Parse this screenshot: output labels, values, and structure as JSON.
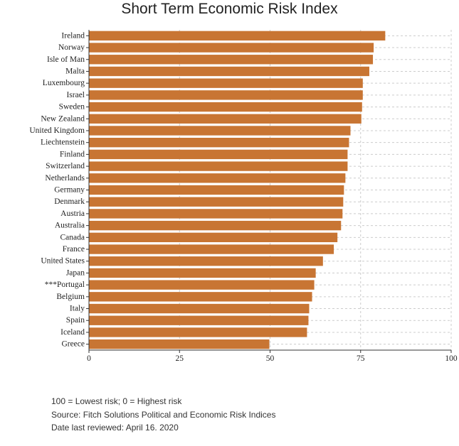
{
  "chart_data": {
    "type": "bar",
    "orientation": "horizontal",
    "title": "Short Term Economic Risk Index",
    "categories": [
      "Ireland",
      "Norway",
      "Isle of Man",
      "Malta",
      "Luxembourg",
      "Israel",
      "Sweden",
      "New Zealand",
      "United Kingdom",
      "Liechtenstein",
      "Finland",
      "Switzerland",
      "Netherlands",
      "Germany",
      "Denmark",
      "Austria",
      "Australia",
      "Canada",
      "France",
      "United States",
      "Japan",
      "***Portugal",
      "Belgium",
      "Italy",
      "Spain",
      "Iceland",
      "Greece"
    ],
    "values": [
      81.8,
      78.6,
      78.4,
      77.4,
      75.6,
      75.6,
      75.4,
      75.2,
      72.2,
      71.8,
      71.4,
      71.4,
      70.8,
      70.4,
      70.2,
      70.0,
      69.6,
      68.6,
      67.6,
      64.6,
      62.6,
      62.2,
      61.6,
      60.8,
      60.6,
      60.2,
      49.8
    ],
    "xlim": [
      0,
      100
    ],
    "xticks": [
      "0",
      "25",
      "50",
      "75",
      "100"
    ],
    "xlabel": "",
    "ylabel": "",
    "grid": true,
    "bar_color": "#c87533",
    "grid_color": "#cccccc"
  },
  "notes": [
    "100 = Lowest risk; 0 = Highest risk",
    "Source: Fitch Solutions Political and Economic Risk Indices",
    "Date last reviewed: April 16. 2020"
  ]
}
